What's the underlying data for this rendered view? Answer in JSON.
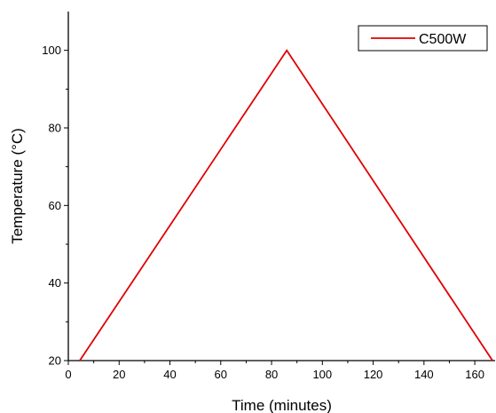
{
  "chart_data": {
    "type": "line",
    "xlabel": "Time (minutes)",
    "ylabel": "Temperature (°C)",
    "xlim": [
      0,
      168
    ],
    "ylim": [
      20,
      110
    ],
    "x_ticks": [
      0,
      20,
      40,
      60,
      80,
      100,
      120,
      140,
      160
    ],
    "y_ticks": [
      20,
      40,
      60,
      80,
      100
    ],
    "grid": false,
    "legend_position": "top-right",
    "series": [
      {
        "name": "C500W",
        "color": "#e00000",
        "x": [
          4.5,
          86,
          167
        ],
        "y": [
          20,
          100,
          20
        ]
      }
    ]
  }
}
